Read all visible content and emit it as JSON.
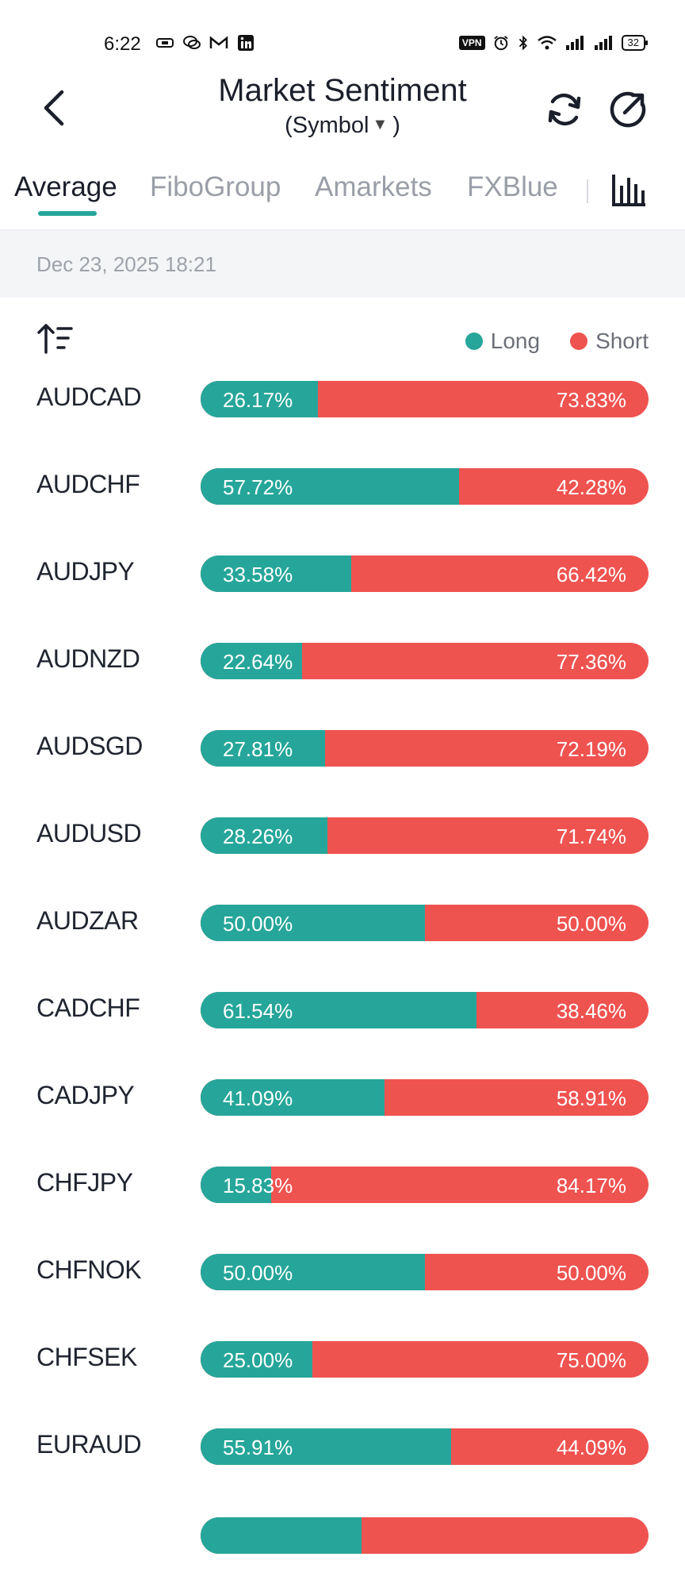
{
  "status_bar": {
    "time": "6:22",
    "vpn_label": "VPN",
    "battery": "32",
    "icons": [
      "cast-icon",
      "chat-icon",
      "gmail-icon",
      "linkedin-icon",
      "vpn-icon",
      "alarm-icon",
      "bluetooth-icon",
      "wifi-icon",
      "signal-icon",
      "signal-icon",
      "battery-icon"
    ]
  },
  "header": {
    "title": "Market Sentiment",
    "subtitle_open": "(Symbol",
    "subtitle_close": ")",
    "icons": [
      "back-arrow-icon",
      "refresh-icon",
      "share-icon"
    ]
  },
  "tabs": [
    {
      "label": "Average",
      "active": true
    },
    {
      "label": "FiboGroup",
      "active": false
    },
    {
      "label": "Amarkets",
      "active": false
    },
    {
      "label": "FXBlue",
      "active": false
    }
  ],
  "timestamp": "Dec 23, 2025 18:21",
  "legend": {
    "long": "Long",
    "short": "Short"
  },
  "colors": {
    "long": "#26a69a",
    "short": "#ef5350",
    "accent": "#26a69a"
  },
  "rows": [
    {
      "symbol": "AUDCAD",
      "long": "26.17%",
      "short": "73.83%",
      "long_value": 26.17
    },
    {
      "symbol": "AUDCHF",
      "long": "57.72%",
      "short": "42.28%",
      "long_value": 57.72
    },
    {
      "symbol": "AUDJPY",
      "long": "33.58%",
      "short": "66.42%",
      "long_value": 33.58
    },
    {
      "symbol": "AUDNZD",
      "long": "22.64%",
      "short": "77.36%",
      "long_value": 22.64
    },
    {
      "symbol": "AUDSGD",
      "long": "27.81%",
      "short": "72.19%",
      "long_value": 27.81
    },
    {
      "symbol": "AUDUSD",
      "long": "28.26%",
      "short": "71.74%",
      "long_value": 28.26
    },
    {
      "symbol": "AUDZAR",
      "long": "50.00%",
      "short": "50.00%",
      "long_value": 50.0
    },
    {
      "symbol": "CADCHF",
      "long": "61.54%",
      "short": "38.46%",
      "long_value": 61.54
    },
    {
      "symbol": "CADJPY",
      "long": "41.09%",
      "short": "58.91%",
      "long_value": 41.09
    },
    {
      "symbol": "CHFJPY",
      "long": "15.83%",
      "short": "84.17%",
      "long_value": 15.83
    },
    {
      "symbol": "CHFNOK",
      "long": "50.00%",
      "short": "50.00%",
      "long_value": 50.0
    },
    {
      "symbol": "CHFSEK",
      "long": "25.00%",
      "short": "75.00%",
      "long_value": 25.0
    },
    {
      "symbol": "EURAUD",
      "long": "55.91%",
      "short": "44.09%",
      "long_value": 55.91
    }
  ]
}
